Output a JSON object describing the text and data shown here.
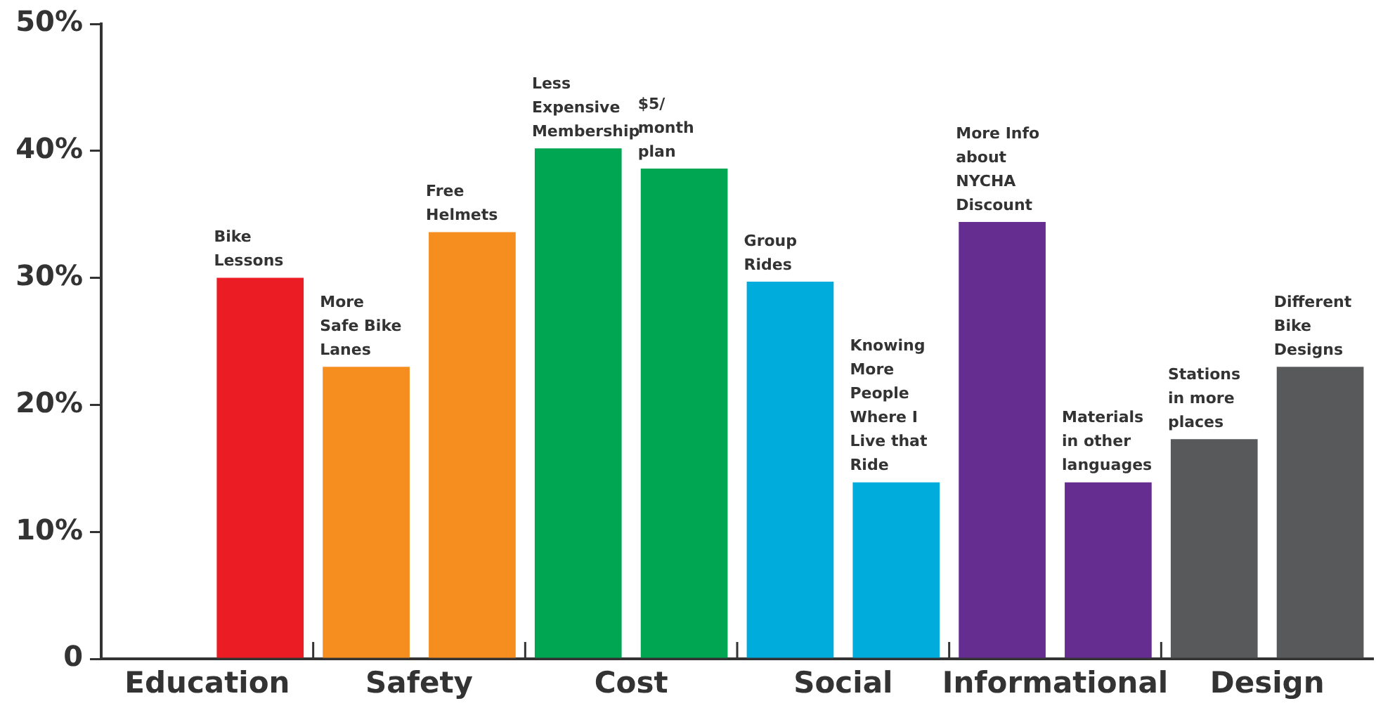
{
  "chart_data": {
    "type": "bar",
    "categories": [
      null,
      "Bike Lessons",
      "More Safe Bike Lanes",
      "Free Helmets",
      "Less Expensive Membership",
      "$5/ month plan",
      "Group Rides",
      "Knowing More People Where I Live that Ride",
      "More Info about NYCHA Discount",
      "Materials in other languages",
      "Stations in more places",
      "Different Bike Designs"
    ],
    "values": [
      null,
      30,
      23,
      33.6,
      40.2,
      38.6,
      29.7,
      13.9,
      34.4,
      13.9,
      17.3,
      23
    ],
    "colors": [
      "#ffffff",
      "#ec1c24",
      "#f58d1f",
      "#f58d1f",
      "#00a651",
      "#00a651",
      "#00acdc",
      "#00acdc",
      "#662d91",
      "#662d91",
      "#58595b",
      "#58595b"
    ],
    "annotations": [
      "Education",
      "Safety",
      "Cost",
      "Social",
      "Informational",
      "Design"
    ],
    "ylim": [
      0,
      50
    ],
    "yticks": [
      0,
      {
        "value": 10,
        "label": "10%"
      },
      {
        "value": 20,
        "label": "20%"
      },
      {
        "value": 30,
        "label": "30%"
      },
      {
        "value": 40,
        "label": "40%"
      },
      {
        "value": 50,
        "label": "50%"
      }
    ],
    "grid": false,
    "legend": false
  }
}
